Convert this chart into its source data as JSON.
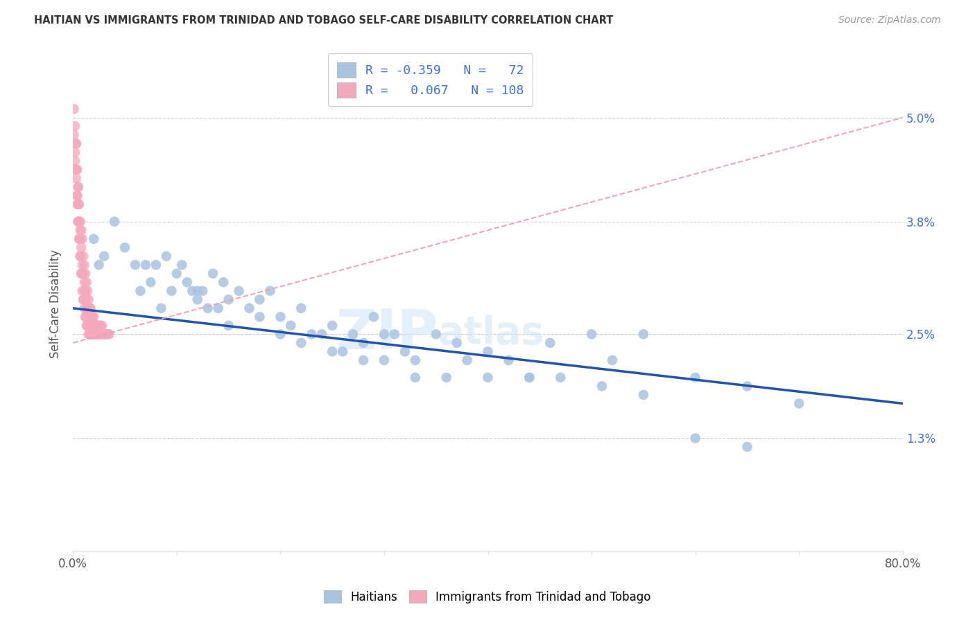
{
  "title": "HAITIAN VS IMMIGRANTS FROM TRINIDAD AND TOBAGO SELF-CARE DISABILITY CORRELATION CHART",
  "source": "Source: ZipAtlas.com",
  "ylabel": "Self-Care Disability",
  "yticks": [
    "1.3%",
    "2.5%",
    "3.8%",
    "5.0%"
  ],
  "ytick_vals": [
    0.013,
    0.025,
    0.038,
    0.05
  ],
  "xlim": [
    0.0,
    0.8
  ],
  "ylim": [
    0.0,
    0.057
  ],
  "color_blue": "#aac4e0",
  "color_pink": "#f4a8bc",
  "line_blue": "#2255aa",
  "line_pink": "#e8a0b0",
  "watermark_zip": "ZIP",
  "watermark_atlas": "atlas",
  "haitians_x": [
    0.02,
    0.025,
    0.03,
    0.04,
    0.05,
    0.06,
    0.065,
    0.07,
    0.075,
    0.08,
    0.085,
    0.09,
    0.095,
    0.1,
    0.105,
    0.11,
    0.115,
    0.12,
    0.125,
    0.13,
    0.135,
    0.14,
    0.145,
    0.15,
    0.16,
    0.17,
    0.18,
    0.19,
    0.2,
    0.21,
    0.22,
    0.23,
    0.24,
    0.25,
    0.26,
    0.27,
    0.28,
    0.29,
    0.3,
    0.31,
    0.32,
    0.33,
    0.35,
    0.37,
    0.38,
    0.4,
    0.42,
    0.44,
    0.46,
    0.5,
    0.52,
    0.55,
    0.6,
    0.65,
    0.7,
    0.12,
    0.15,
    0.18,
    0.2,
    0.22,
    0.25,
    0.28,
    0.3,
    0.33,
    0.36,
    0.4,
    0.44,
    0.47,
    0.51,
    0.55,
    0.6,
    0.65
  ],
  "haitians_y": [
    0.036,
    0.033,
    0.034,
    0.038,
    0.035,
    0.033,
    0.03,
    0.033,
    0.031,
    0.033,
    0.028,
    0.034,
    0.03,
    0.032,
    0.033,
    0.031,
    0.03,
    0.029,
    0.03,
    0.028,
    0.032,
    0.028,
    0.031,
    0.029,
    0.03,
    0.028,
    0.029,
    0.03,
    0.027,
    0.026,
    0.028,
    0.025,
    0.025,
    0.026,
    0.023,
    0.025,
    0.024,
    0.027,
    0.025,
    0.025,
    0.023,
    0.02,
    0.025,
    0.024,
    0.022,
    0.023,
    0.022,
    0.02,
    0.024,
    0.025,
    0.022,
    0.025,
    0.02,
    0.019,
    0.017,
    0.03,
    0.026,
    0.027,
    0.025,
    0.024,
    0.023,
    0.022,
    0.022,
    0.022,
    0.02,
    0.02,
    0.02,
    0.02,
    0.019,
    0.018,
    0.013,
    0.012
  ],
  "trinidad_x": [
    0.001,
    0.001,
    0.002,
    0.002,
    0.003,
    0.003,
    0.004,
    0.004,
    0.005,
    0.005,
    0.006,
    0.006,
    0.007,
    0.007,
    0.008,
    0.008,
    0.009,
    0.009,
    0.01,
    0.01,
    0.011,
    0.011,
    0.012,
    0.012,
    0.013,
    0.013,
    0.014,
    0.014,
    0.015,
    0.015,
    0.016,
    0.016,
    0.017,
    0.017,
    0.018,
    0.018,
    0.019,
    0.019,
    0.02,
    0.02,
    0.021,
    0.021,
    0.022,
    0.022,
    0.023,
    0.023,
    0.024,
    0.024,
    0.025,
    0.025,
    0.026,
    0.026,
    0.027,
    0.027,
    0.028,
    0.028,
    0.029,
    0.03,
    0.031,
    0.032,
    0.033,
    0.034,
    0.035,
    0.002,
    0.003,
    0.004,
    0.005,
    0.006,
    0.007,
    0.008,
    0.009,
    0.01,
    0.011,
    0.012,
    0.013,
    0.014,
    0.015,
    0.016,
    0.017,
    0.018,
    0.019,
    0.02,
    0.021,
    0.022,
    0.023,
    0.024,
    0.025,
    0.026,
    0.027,
    0.028,
    0.003,
    0.004,
    0.005,
    0.006,
    0.007,
    0.008,
    0.01,
    0.012,
    0.015,
    0.003,
    0.005,
    0.007,
    0.009,
    0.011,
    0.013,
    0.015,
    0.017,
    0.019
  ],
  "trinidad_y": [
    0.048,
    0.051,
    0.045,
    0.049,
    0.044,
    0.047,
    0.041,
    0.044,
    0.04,
    0.042,
    0.038,
    0.04,
    0.036,
    0.038,
    0.035,
    0.037,
    0.033,
    0.036,
    0.032,
    0.034,
    0.031,
    0.033,
    0.03,
    0.032,
    0.029,
    0.031,
    0.028,
    0.03,
    0.028,
    0.029,
    0.027,
    0.028,
    0.027,
    0.028,
    0.026,
    0.027,
    0.026,
    0.027,
    0.026,
    0.027,
    0.025,
    0.026,
    0.025,
    0.026,
    0.025,
    0.026,
    0.025,
    0.026,
    0.025,
    0.026,
    0.025,
    0.026,
    0.025,
    0.026,
    0.025,
    0.026,
    0.025,
    0.025,
    0.025,
    0.025,
    0.025,
    0.025,
    0.025,
    0.046,
    0.043,
    0.04,
    0.038,
    0.036,
    0.034,
    0.032,
    0.03,
    0.029,
    0.028,
    0.027,
    0.026,
    0.026,
    0.025,
    0.025,
    0.025,
    0.025,
    0.025,
    0.025,
    0.025,
    0.025,
    0.025,
    0.025,
    0.025,
    0.025,
    0.025,
    0.025,
    0.044,
    0.041,
    0.038,
    0.036,
    0.034,
    0.032,
    0.029,
    0.027,
    0.026,
    0.047,
    0.042,
    0.037,
    0.032,
    0.03,
    0.028,
    0.026,
    0.026,
    0.025
  ],
  "blue_line_x": [
    0.0,
    0.8
  ],
  "blue_line_y": [
    0.028,
    0.017
  ],
  "pink_line_x": [
    0.0,
    0.8
  ],
  "pink_line_y": [
    0.024,
    0.05
  ]
}
